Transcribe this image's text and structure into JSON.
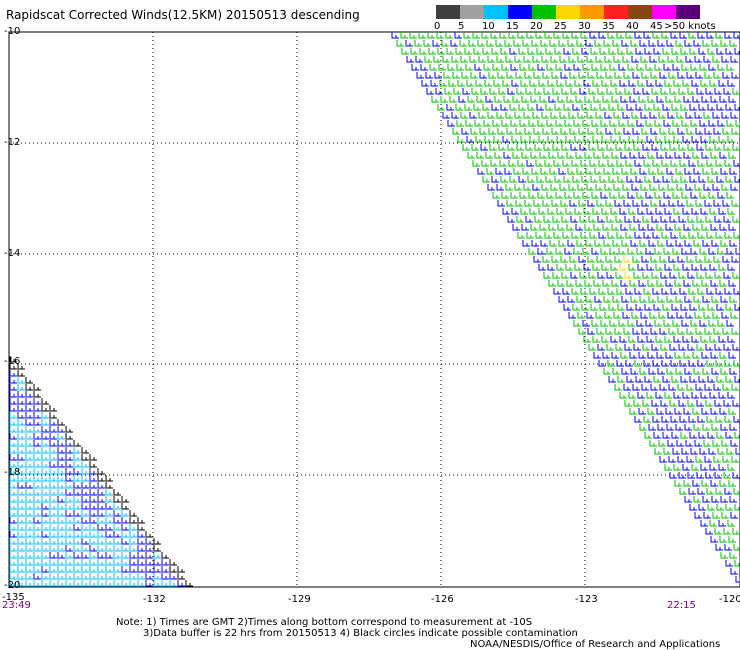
{
  "title": "Rapidscat Corrected Winds(12.5KM) 20150513 descending",
  "legend": {
    "units": ">50 knots",
    "bins": [
      {
        "label": "0",
        "color": "#404040"
      },
      {
        "label": "5",
        "color": "#a0a0a0"
      },
      {
        "label": "10",
        "color": "#00c0ff"
      },
      {
        "label": "15",
        "color": "#0000ff"
      },
      {
        "label": "20",
        "color": "#00c000"
      },
      {
        "label": "25",
        "color": "#ffd700"
      },
      {
        "label": "30",
        "color": "#ff9900"
      },
      {
        "label": "35",
        "color": "#ff2020"
      },
      {
        "label": "40",
        "color": "#8b4513"
      },
      {
        "label": "45",
        "color": "#ff00ff"
      },
      {
        "label": "",
        "color": "#5a007a"
      }
    ]
  },
  "axes": {
    "lat_labels": [
      "-10",
      "-12",
      "-14",
      "-16",
      "-18",
      "-20"
    ],
    "lon_labels": [
      "-135",
      "-132",
      "-129",
      "-126",
      "-123",
      "-120"
    ]
  },
  "times": {
    "left": "23:49",
    "right": "22:15"
  },
  "notes": {
    "line1": "Note: 1) Times are GMT 2)Times along bottom correspond to measurement at -10S",
    "line2": "3)Data buffer is 22 hrs from 20150513 4) Black circles indicate possible contamination",
    "line3": "NOAA/NESDIS/Office of Research and Applications"
  }
}
